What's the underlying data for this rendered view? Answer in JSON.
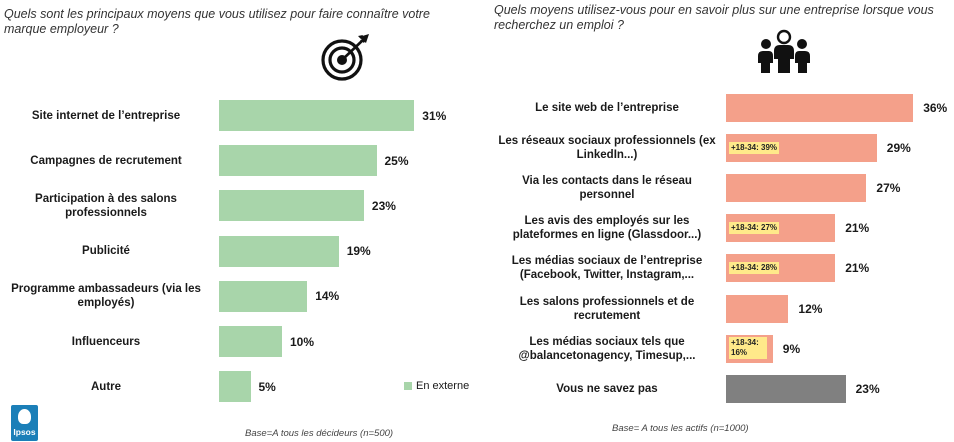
{
  "left_question": "Quels sont les principaux moyens que vous utilisez pour faire connaître votre marque employeur ?",
  "right_question": "Quels moyens utilisez-vous pour en savoir plus sur une entreprise lorsque vous recherchez un emploi ?",
  "legend_label": "En externe",
  "left_base": "Base=A tous les décideurs  (n=500)",
  "right_base": "Base= A tous les actifs  (n=1000)",
  "logo_text": "Ipsos",
  "icons": {
    "left": "target-arrow-icon",
    "right": "group-people-icon"
  },
  "colors": {
    "green": "#a8d5aa",
    "salmon": "#f4a08a",
    "grey": "#808080",
    "highlight": "#ffe98a"
  },
  "chart_data": [
    {
      "type": "bar",
      "orientation": "horizontal",
      "categories": [
        "Site internet de l’entreprise",
        "Campagnes de recrutement",
        "Participation à des salons professionnels",
        "Publicité",
        "Programme ambassadeurs (via les employés)",
        "Influenceurs",
        "Autre"
      ],
      "series": [
        {
          "name": "En externe",
          "values": [
            31,
            25,
            23,
            19,
            14,
            10,
            5
          ]
        }
      ],
      "value_labels": [
        "31%",
        "25%",
        "23%",
        "19%",
        "14%",
        "10%",
        "5%"
      ],
      "legend_position": "bottom-right"
    },
    {
      "type": "bar",
      "orientation": "horizontal",
      "categories": [
        "Le site web de l’entreprise",
        "Les réseaux sociaux professionnels (ex LinkedIn...)",
        "Via les contacts dans le réseau personnel",
        "Les avis des employés sur les plateformes en ligne (Glassdoor...)",
        "Les médias sociaux de l’entreprise (Facebook, Twitter, Instagram,...",
        "Les salons professionnels et de recrutement",
        "Les médias sociaux tels que @balancetonagency, Timesup,...",
        "Vous ne savez pas"
      ],
      "values": [
        36,
        29,
        27,
        21,
        21,
        12,
        9,
        23
      ],
      "value_labels": [
        "36%",
        "29%",
        "27%",
        "21%",
        "21%",
        "12%",
        "9%",
        "23%"
      ],
      "annotations": [
        "",
        "+18-34: 39%",
        "",
        "+18-34: 27%",
        "+18-34: 28%",
        "",
        "+18-34: 16%",
        ""
      ]
    }
  ]
}
